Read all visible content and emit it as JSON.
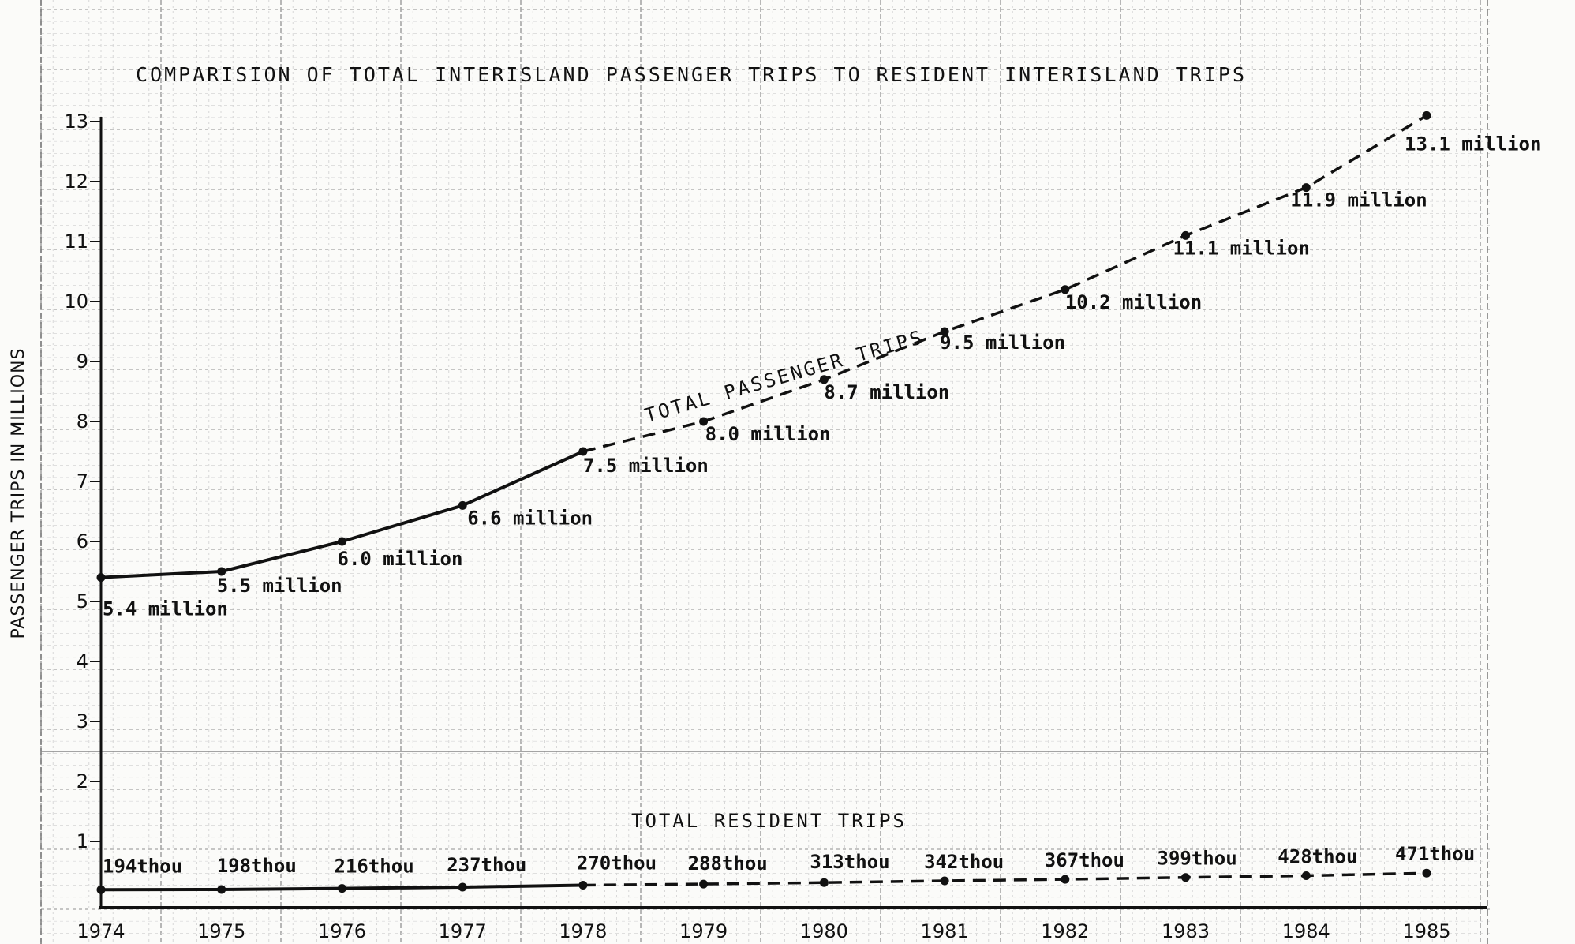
{
  "chart_data": {
    "type": "line",
    "title": "COMPARISION OF TOTAL INTERISLAND PASSENGER TRIPS TO RESIDENT INTERISLAND TRIPS",
    "ylabel": "PASSENGER TRIPS IN MILLIONS",
    "xlabel": "",
    "ylim": [
      0,
      13
    ],
    "yticks": [
      "1",
      "2",
      "3",
      "4",
      "5",
      "6",
      "7",
      "8",
      "9",
      "10",
      "11",
      "12",
      "13"
    ],
    "categories": [
      "1974",
      "1975",
      "1976",
      "1977",
      "1978",
      "1979",
      "1980",
      "1981",
      "1982",
      "1983",
      "1984",
      "1985"
    ],
    "grid": true,
    "series": [
      {
        "name": "TOTAL PASSENGER TRIPS",
        "values": [
          5.4,
          5.5,
          6.0,
          6.6,
          7.5,
          8.0,
          8.7,
          9.5,
          10.2,
          11.1,
          11.9,
          13.1
        ],
        "labels": [
          "5.4 million",
          "5.5 million",
          "6.0 million",
          "6.6 million",
          "7.5 million",
          "8.0 million",
          "8.7 million",
          "9.5 million",
          "10.2 million",
          "11.1 million",
          "11.9 million",
          "13.1 million"
        ],
        "solid_until": "1978"
      },
      {
        "name": "TOTAL RESIDENT TRIPS",
        "values": [
          0.194,
          0.198,
          0.216,
          0.237,
          0.27,
          0.288,
          0.313,
          0.342,
          0.367,
          0.399,
          0.428,
          0.471
        ],
        "labels": [
          "194thou",
          "198thou",
          "216thou",
          "237thou",
          "270thou",
          "288thou",
          "313thou",
          "342thou",
          "367thou",
          "399thou",
          "428thou",
          "471thou"
        ],
        "solid_until": "1978"
      }
    ]
  }
}
